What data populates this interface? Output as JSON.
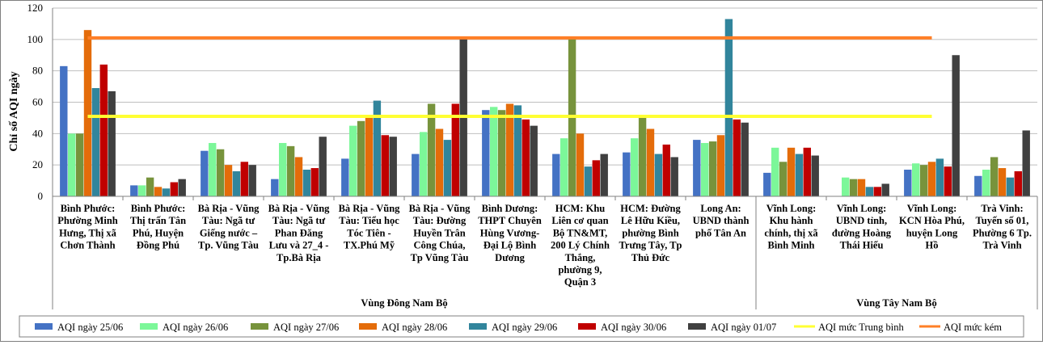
{
  "chart_data": {
    "type": "bar",
    "ylabel": "Chỉ số AQI ngày",
    "ylim": [
      0,
      120
    ],
    "yticks": [
      0,
      20,
      40,
      60,
      80,
      100,
      120
    ],
    "grid": true,
    "legend_position": "bottom",
    "categories": [
      [
        "Bình Phước:",
        "Phường Minh",
        "Hưng, Thị xã",
        "Chơn Thành"
      ],
      [
        "Bình Phước:",
        "Thị trấn Tân",
        "Phú, Huyện",
        "Đồng Phú"
      ],
      [
        "Bà Rịa - Vũng",
        "Tàu: Ngã tư",
        "Giếng nước –",
        "Tp. Vũng Tàu"
      ],
      [
        "Bà Rịa - Vũng",
        "Tàu: Ngã tư",
        "Phan Đăng",
        "Lưu và 27_4 -",
        "Tp.Bà  Rịa"
      ],
      [
        "Bà Rịa - Vũng",
        "Tàu: Tiểu học",
        "Tóc Tiên -",
        "TX.Phú Mỹ"
      ],
      [
        "Bà Rịa - Vũng",
        "Tàu: Đường",
        "Huyền Trân",
        "Công Chúa,",
        "Tp Vũng Tàu"
      ],
      [
        "Bình Dương:",
        "THPT Chuyên",
        "Hùng Vương-",
        "Đại Lộ Bình",
        "Dương"
      ],
      [
        "HCM:  Khu",
        "Liên cơ quan",
        "Bộ TN&MT,",
        "200 Lý Chính",
        "Thắng,",
        "phường 9,",
        "Quận 3"
      ],
      [
        "HCM:  Đường",
        "Lê Hữu Kiều,",
        "phường Bình",
        "Trưng Tây, Tp",
        "Thủ Đức"
      ],
      [
        "Long An:",
        "UBND thành",
        "phố Tân An"
      ],
      [
        "Vĩnh Long:",
        "Khu hành",
        "chính, thị xã",
        "Bình Minh"
      ],
      [
        "Vĩnh Long:",
        "UBND tỉnh,",
        "đường Hoàng",
        "Thái Hiếu"
      ],
      [
        "Vĩnh Long:",
        "KCN Hòa Phú,",
        "huyện Long",
        "Hồ"
      ],
      [
        "Trà Vinh:",
        "Tuyến số 01,",
        "Phường 6 Tp.",
        "Trà Vinh"
      ]
    ],
    "regions": [
      {
        "name": "Vùng Đông Nam  Bộ",
        "categories": 10
      },
      {
        "name": "Vùng Tây Nam  Bộ",
        "categories": 4
      }
    ],
    "series": [
      {
        "name": "AQI ngày 25/06",
        "color": "#4472c4",
        "values": [
          83,
          7,
          29,
          11,
          24,
          27,
          55,
          27,
          28,
          36,
          15,
          0,
          17,
          13
        ]
      },
      {
        "name": "AQI ngày 26/06",
        "color": "#7cf799",
        "values": [
          40,
          7,
          34,
          34,
          45,
          41,
          57,
          37,
          37,
          34,
          31,
          12,
          21,
          17
        ]
      },
      {
        "name": "AQI ngày 27/06",
        "color": "#77933c",
        "values": [
          40,
          12,
          30,
          32,
          48,
          59,
          55,
          101,
          50,
          35,
          22,
          11,
          20,
          25
        ]
      },
      {
        "name": "AQI ngày 28/06",
        "color": "#e46c0a",
        "values": [
          106,
          6,
          20,
          25,
          51,
          43,
          59,
          40,
          43,
          39,
          31,
          11,
          22,
          18
        ]
      },
      {
        "name": "AQI ngày 29/06",
        "color": "#31859c",
        "values": [
          69,
          5,
          16,
          17,
          61,
          36,
          58,
          19,
          27,
          113,
          27,
          6,
          24,
          12
        ]
      },
      {
        "name": "AQI ngày 30/06",
        "color": "#c00000",
        "values": [
          84,
          9,
          22,
          18,
          39,
          59,
          49,
          23,
          33,
          49,
          31,
          6,
          19,
          16
        ]
      },
      {
        "name": "AQI ngày 01/07",
        "color": "#404040",
        "values": [
          67,
          11,
          20,
          38,
          38,
          101,
          45,
          27,
          25,
          47,
          26,
          8,
          90,
          42
        ]
      }
    ],
    "reference_lines": [
      {
        "name": "AQI mức Trung bình",
        "color": "#ffff33",
        "value": 51
      },
      {
        "name": "AQI mức kém",
        "color": "#ff7f27",
        "value": 101
      }
    ]
  }
}
